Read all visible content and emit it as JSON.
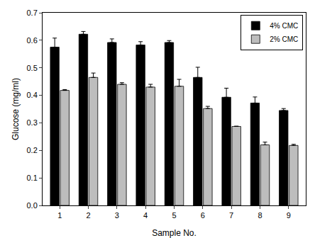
{
  "chart_data": {
    "type": "bar",
    "x_label": "Sample No.",
    "y_label": "Glucose (mg/ml)",
    "categories": [
      "1",
      "2",
      "3",
      "4",
      "5",
      "6",
      "7",
      "8",
      "9"
    ],
    "series": [
      {
        "name": "4% CMC",
        "color": "#000000",
        "values": [
          0.575,
          0.622,
          0.592,
          0.583,
          0.592,
          0.465,
          0.393,
          0.372,
          0.345
        ],
        "errors": [
          0.033,
          0.01,
          0.013,
          0.012,
          0.007,
          0.037,
          0.033,
          0.022,
          0.007
        ]
      },
      {
        "name": "2% CMC",
        "color": "#bdbdbd",
        "values": [
          0.418,
          0.465,
          0.44,
          0.43,
          0.433,
          0.352,
          0.287,
          0.22,
          0.218
        ],
        "errors": [
          0.003,
          0.016,
          0.006,
          0.01,
          0.025,
          0.008,
          0.001,
          0.01,
          0.004
        ]
      }
    ],
    "ylim": [
      0,
      0.7
    ],
    "yticks": [
      {
        "value": 0,
        "label": "0.0"
      },
      0.1,
      0.2,
      0.3,
      0.4,
      0.5,
      0.6,
      0.7
    ],
    "grid": false,
    "legend": "top-right"
  }
}
